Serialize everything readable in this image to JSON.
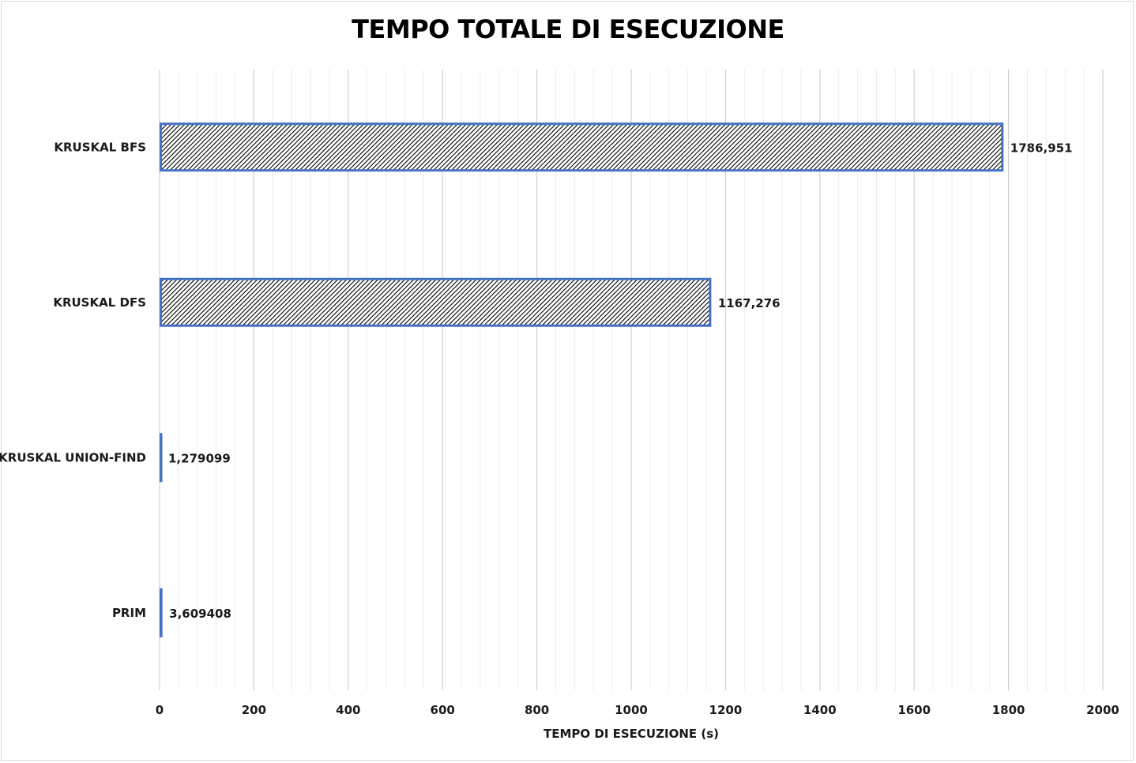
{
  "chart_data": {
    "type": "bar",
    "orientation": "horizontal",
    "title": "TEMPO TOTALE DI ESECUZIONE",
    "xlabel": "TEMPO DI ESECUZIONE (s)",
    "ylabel": "",
    "xlim": [
      0,
      2000
    ],
    "xticks": [
      0,
      200,
      400,
      600,
      800,
      1000,
      1200,
      1400,
      1600,
      1800,
      2000
    ],
    "xtick_labels": [
      "0",
      "200",
      "400",
      "600",
      "800",
      "1000",
      "1200",
      "1400",
      "1600",
      "1800",
      "2000"
    ],
    "grid": true,
    "legend": "none",
    "categories": [
      "KRUSKAL BFS",
      "KRUSKAL DFS",
      "KRUSKAL UNION-FIND",
      "PRIM"
    ],
    "values": [
      1786.951,
      1167.276,
      1.279099,
      3.609408
    ],
    "data_labels": [
      "1786,951",
      "1167,276",
      "1,279099",
      "3,609408"
    ],
    "bar_fill": "hatched",
    "bar_border_color": "#4472c4",
    "grid_color_major": "#d0d0d0",
    "grid_color_minor": "#ececec"
  }
}
